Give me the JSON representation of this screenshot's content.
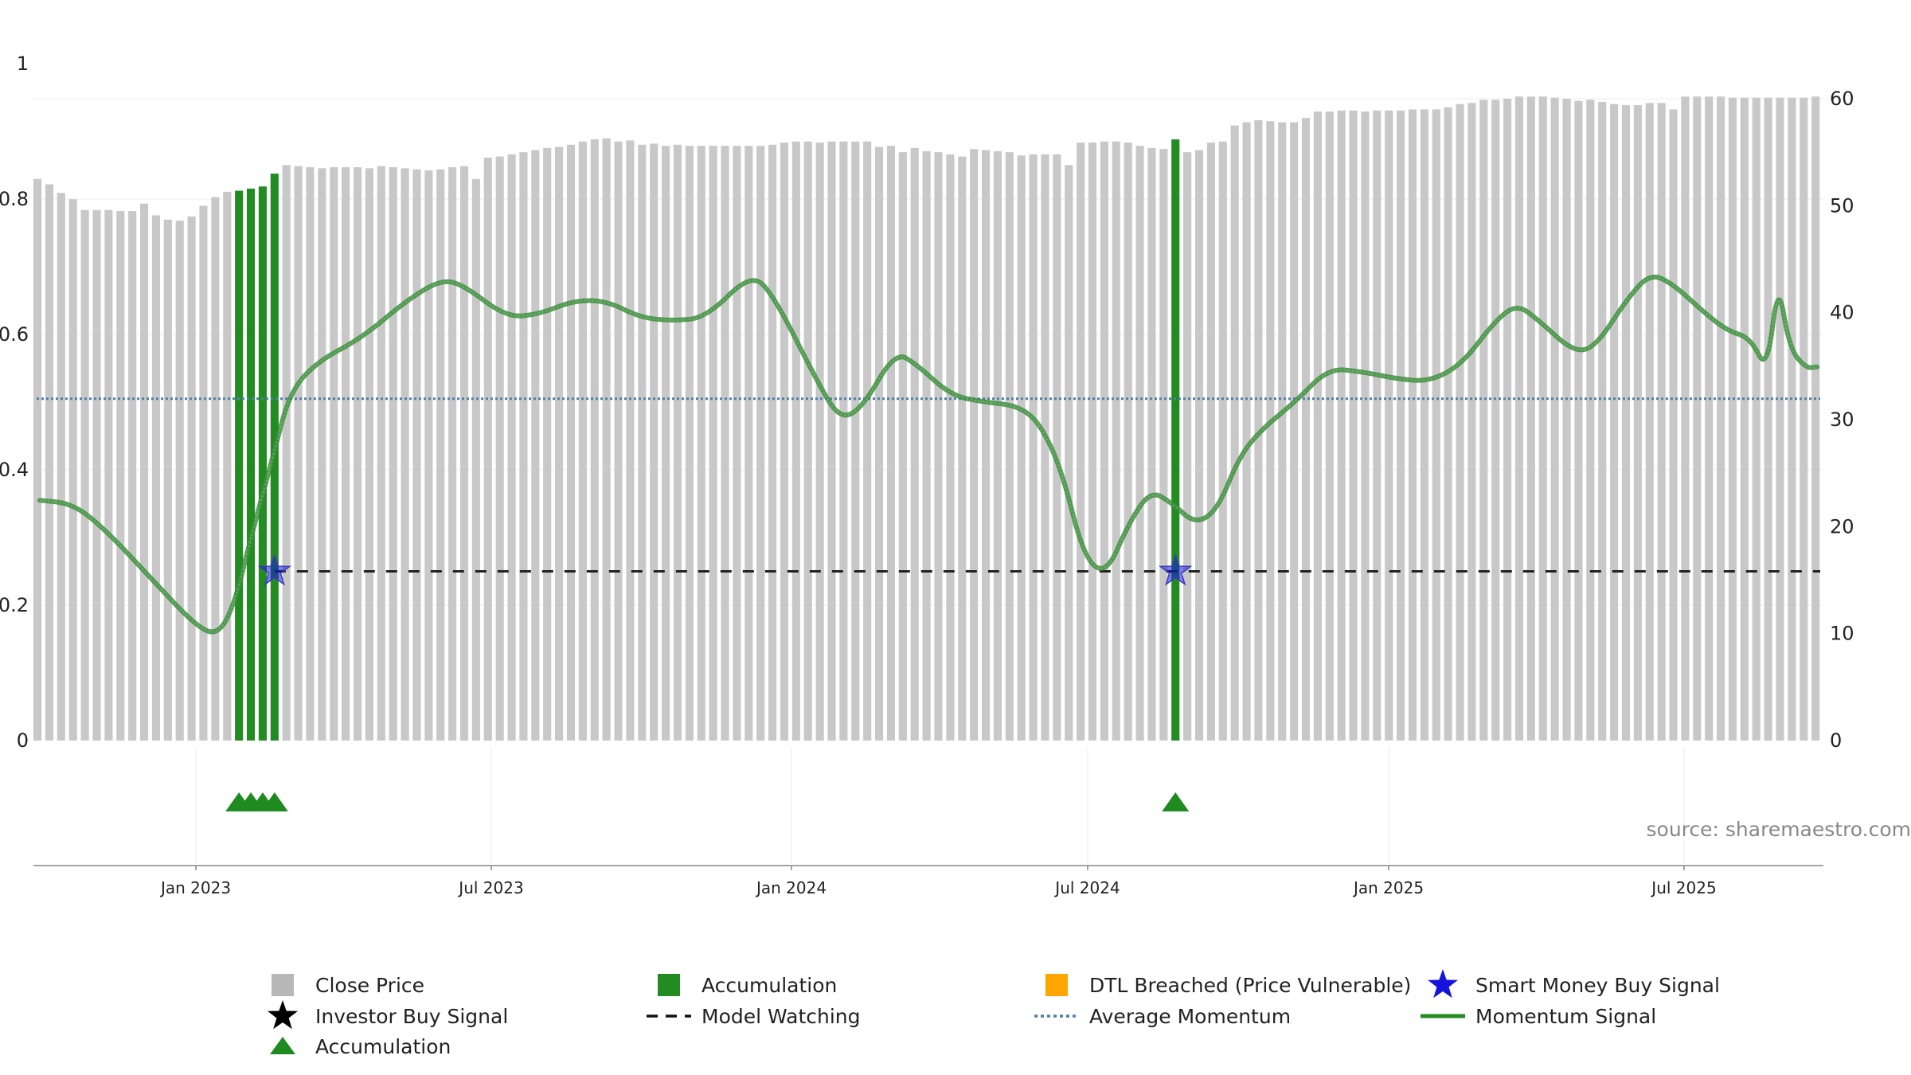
{
  "chart_data": {
    "type": "bar",
    "title": "",
    "source": "source: sharemaestro.com",
    "left_axis": {
      "ticks": [
        "0",
        "0.2",
        "0.4",
        "0.6",
        "0.8",
        "1"
      ],
      "range": [
        0,
        1.0
      ]
    },
    "right_axis": {
      "ticks": [
        "0",
        "10",
        "20",
        "30",
        "40",
        "50",
        "60"
      ],
      "range": [
        0,
        60
      ]
    },
    "x_ticks": [
      "Jan 2023",
      "Jul 2023",
      "Jan 2024",
      "Jul 2024",
      "Jan 2025",
      "Jul 2025"
    ],
    "x_range": [
      "2022-09",
      "2025-09"
    ],
    "close_price_bars": [
      52.5,
      52,
      51.2,
      50.6,
      49.6,
      49.6,
      49.6,
      49.5,
      49.5,
      50.2,
      49.1,
      48.7,
      48.6,
      49.0,
      50.0,
      50.8,
      51.3,
      51.4,
      51.6,
      51.8,
      53.0,
      53.8,
      53.7,
      53.6,
      53.5,
      53.6,
      53.6,
      53.6,
      53.5,
      53.7,
      53.6,
      53.5,
      53.4,
      53.3,
      53.4,
      53.6,
      53.7,
      52.5,
      54.5,
      54.6,
      54.8,
      55.0,
      55.2,
      55.4,
      55.5,
      55.7,
      56.0,
      56.2,
      56.3,
      56.0,
      56.1,
      55.7,
      55.8,
      55.6,
      55.7,
      55.6,
      55.6,
      55.6,
      55.6,
      55.6,
      55.6,
      55.6,
      55.7,
      55.9,
      56.0,
      56.0,
      55.9,
      56.0,
      56.0,
      56.0,
      56.0,
      55.5,
      55.6,
      55.0,
      55.4,
      55.1,
      55.0,
      54.8,
      54.6,
      55.3,
      55.2,
      55.1,
      55.0,
      54.7,
      54.8,
      54.8,
      54.8,
      53.8,
      55.9,
      55.9,
      56.0,
      56.0,
      55.9,
      55.6,
      55.4,
      55.3,
      55.2,
      55.0,
      55.2,
      55.9,
      56.0,
      57.5,
      57.8,
      58.0,
      57.9,
      57.8,
      57.8,
      58.2,
      58.8,
      58.8,
      58.9,
      58.9,
      58.8,
      58.9,
      58.9,
      58.9,
      59.0,
      59.0,
      59.0,
      59.2,
      59.5,
      59.6,
      59.9,
      59.9,
      60.0,
      60.2,
      60.2,
      60.2,
      60.1,
      60.0,
      59.8,
      59.9,
      59.7,
      59.5,
      59.4,
      59.4,
      59.6,
      59.6,
      59.0,
      60.2,
      60.2,
      60.2,
      60.2,
      60.1,
      60.1,
      60.1,
      60.1,
      60.1,
      60.1,
      60.1,
      60.2
    ],
    "accumulation_bar_indices": [
      17,
      18,
      19,
      20,
      96
    ],
    "momentum_signal": [
      [
        0,
        0.355
      ],
      [
        0.03,
        0.35
      ],
      [
        0.06,
        0.31
      ],
      [
        0.1,
        0.24
      ],
      [
        0.14,
        0.17
      ],
      [
        0.16,
        0.155
      ],
      [
        0.175,
        0.2
      ],
      [
        0.19,
        0.3
      ],
      [
        0.21,
        0.42
      ],
      [
        0.225,
        0.515
      ],
      [
        0.25,
        0.56
      ],
      [
        0.29,
        0.595
      ],
      [
        0.33,
        0.65
      ],
      [
        0.36,
        0.68
      ],
      [
        0.38,
        0.675
      ],
      [
        0.42,
        0.625
      ],
      [
        0.45,
        0.63
      ],
      [
        0.48,
        0.65
      ],
      [
        0.51,
        0.65
      ],
      [
        0.54,
        0.625
      ],
      [
        0.57,
        0.62
      ],
      [
        0.6,
        0.625
      ],
      [
        0.64,
        0.69
      ],
      [
        0.66,
        0.66
      ],
      [
        0.7,
        0.53
      ],
      [
        0.72,
        0.475
      ],
      [
        0.74,
        0.49
      ],
      [
        0.77,
        0.575
      ],
      [
        0.79,
        0.555
      ],
      [
        0.82,
        0.51
      ],
      [
        0.85,
        0.5
      ],
      [
        0.88,
        0.495
      ],
      [
        0.9,
        0.47
      ],
      [
        0.92,
        0.4
      ],
      [
        0.94,
        0.27
      ],
      [
        0.96,
        0.245
      ],
      [
        0.98,
        0.32
      ],
      [
        1.0,
        0.37
      ],
      [
        1.02,
        0.35
      ],
      [
        1.04,
        0.32
      ],
      [
        1.06,
        0.34
      ],
      [
        1.08,
        0.42
      ],
      [
        1.1,
        0.46
      ],
      [
        1.13,
        0.5
      ],
      [
        1.16,
        0.55
      ],
      [
        1.19,
        0.545
      ],
      [
        1.22,
        0.535
      ],
      [
        1.25,
        0.53
      ],
      [
        1.28,
        0.555
      ],
      [
        1.31,
        0.62
      ],
      [
        1.33,
        0.645
      ],
      [
        1.35,
        0.62
      ],
      [
        1.38,
        0.575
      ],
      [
        1.4,
        0.58
      ],
      [
        1.43,
        0.655
      ],
      [
        1.45,
        0.69
      ],
      [
        1.47,
        0.675
      ],
      [
        1.5,
        0.63
      ],
      [
        1.52,
        0.605
      ],
      [
        1.54,
        0.595
      ],
      [
        1.555,
        0.545
      ],
      [
        1.565,
        0.68
      ],
      [
        1.575,
        0.58
      ],
      [
        1.59,
        0.55
      ],
      [
        1.6,
        0.552
      ]
    ],
    "average_momentum": 0.505,
    "model_watching": 0.25,
    "smart_money_buy_signal_indices": [
      20,
      96
    ],
    "accumulation_marker_indices": [
      17,
      18,
      19,
      20,
      96
    ],
    "legend": [
      [
        "Close Price",
        "Accumulation",
        "DTL Breached (Price Vulnerable)",
        "Smart Money Buy Signal"
      ],
      [
        "Investor Buy Signal",
        "Model Watching",
        "Average Momentum",
        "Momentum Signal"
      ],
      [
        "Accumulation"
      ]
    ],
    "colors": {
      "close_bar": "#c8c8c8",
      "accumulation": "#228b22",
      "momentum": "#3e8e3e",
      "average_momentum": "#4f7fa8",
      "model_watching": "#222222",
      "smart_money": "#1414dc",
      "dtl": "#ffa500",
      "triangle": "#1f8a1f"
    }
  }
}
